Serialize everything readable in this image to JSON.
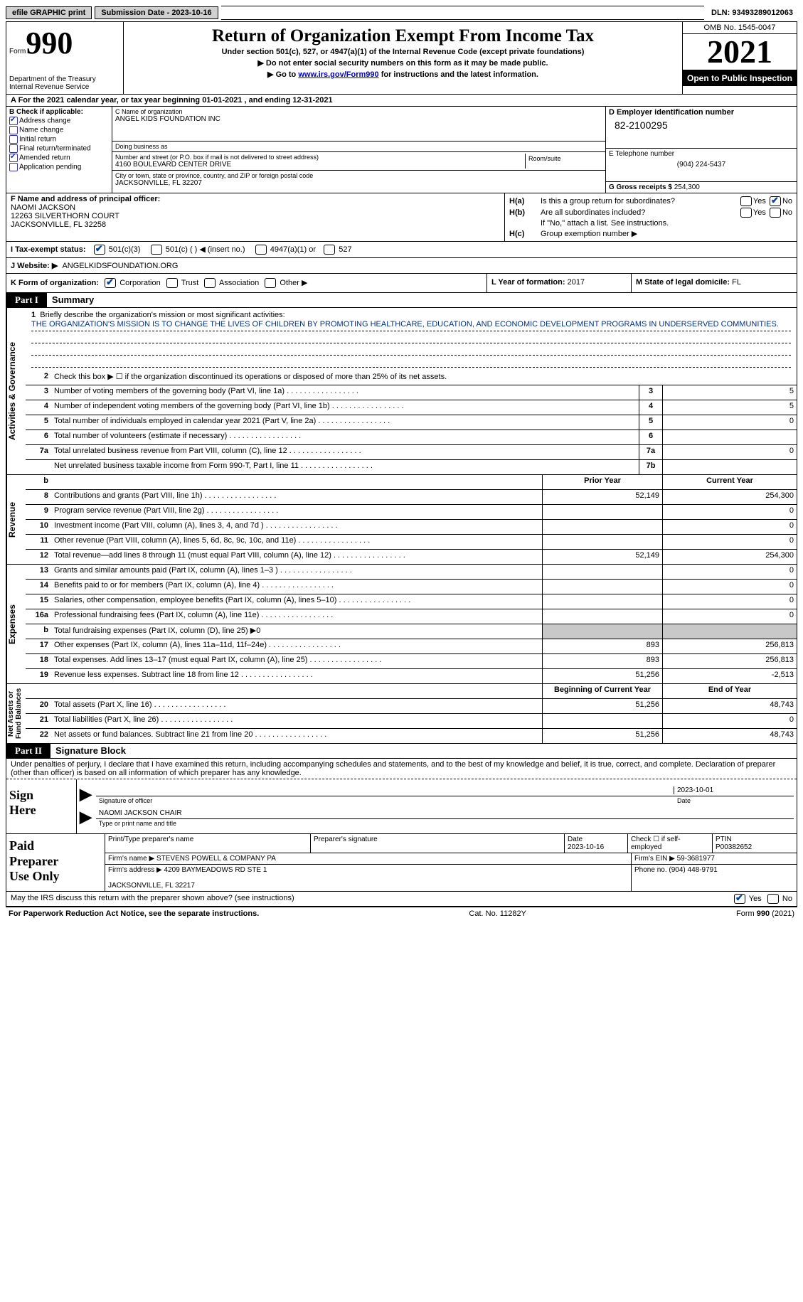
{
  "topbar": {
    "efile_label": "efile GRAPHIC print",
    "submission_label": "Submission Date - 2023-10-16",
    "dln": "DLN: 93493289012063"
  },
  "header": {
    "form_word": "Form",
    "form_num": "990",
    "dept": "Department of the Treasury\nInternal Revenue Service",
    "title": "Return of Organization Exempt From Income Tax",
    "subtitle": "Under section 501(c), 527, or 4947(a)(1) of the Internal Revenue Code (except private foundations)",
    "arrow1": "▶ Do not enter social security numbers on this form as it may be made public.",
    "arrow2_pre": "▶ Go to ",
    "arrow2_link": "www.irs.gov/Form990",
    "arrow2_post": " for instructions and the latest information.",
    "omb": "OMB No. 1545-0047",
    "year": "2021",
    "inspection": "Open to Public Inspection"
  },
  "row_a": "A  For the 2021 calendar year, or tax year beginning 01-01-2021    , and ending 12-31-2021",
  "section_b": {
    "title": "B Check if applicable:",
    "items": [
      {
        "label": "Address change",
        "checked": true
      },
      {
        "label": "Name change",
        "checked": false
      },
      {
        "label": "Initial return",
        "checked": false
      },
      {
        "label": "Final return/terminated",
        "checked": false
      },
      {
        "label": "Amended return",
        "checked": true
      },
      {
        "label": "Application pending",
        "checked": false
      }
    ]
  },
  "section_c": {
    "name_lbl": "C Name of organization",
    "name": "ANGEL KIDS FOUNDATION INC",
    "dba_lbl": "Doing business as",
    "dba": "",
    "addr_lbl": "Number and street (or P.O. box if mail is not delivered to street address)",
    "addr": "4160 BOULEVARD CENTER DRIVE",
    "room_lbl": "Room/suite",
    "room": "",
    "city_lbl": "City or town, state or province, country, and ZIP or foreign postal code",
    "city": "JACKSONVILLE, FL  32207"
  },
  "section_d": {
    "lbl": "D Employer identification number",
    "val": "82-2100295"
  },
  "section_e": {
    "lbl": "E Telephone number",
    "val": "(904) 224-5437"
  },
  "section_g": {
    "lbl": "G Gross receipts $",
    "val": "254,300"
  },
  "section_f": {
    "lbl": "F Name and address of principal officer:",
    "name": "NAOMI JACKSON",
    "addr": "12263 SILVERTHORN COURT\nJACKSONVILLE, FL  32258"
  },
  "section_h": {
    "ha": "Is this a group return for subordinates?",
    "hb": "Are all subordinates included?",
    "hb_note": "If \"No,\" attach a list. See instructions.",
    "hc": "Group exemption number ▶"
  },
  "tax_status": {
    "lbl": "I   Tax-exempt status:",
    "o1": "501(c)(3)",
    "o2": "501(c) (  ) ◀ (insert no.)",
    "o3": "4947(a)(1) or",
    "o4": "527"
  },
  "row_j": {
    "lbl": "J   Website: ▶",
    "val": "ANGELKIDSFOUNDATION.ORG"
  },
  "row_k": {
    "k1": "K Form of organization:",
    "corp": "Corporation",
    "trust": "Trust",
    "assoc": "Association",
    "other": "Other ▶",
    "k2_lbl": "L Year of formation:",
    "k2_val": "2017",
    "k3_lbl": "M State of legal domicile:",
    "k3_val": "FL"
  },
  "part1": {
    "label": "Part I",
    "title": "Summary"
  },
  "mission": {
    "lbl": "Briefly describe the organization's mission or most significant activities:",
    "text": "THE ORGANIZATION'S MISSION IS TO CHANGE THE LIVES OF CHILDREN BY PROMOTING HEALTHCARE, EDUCATION, AND ECONOMIC DEVELOPMENT PROGRAMS IN UNDERSERVED COMMUNITIES."
  },
  "lines_gov": [
    {
      "n": "2",
      "t": "Check this box ▶ ☐  if the organization discontinued its operations or disposed of more than 25% of its net assets."
    },
    {
      "n": "3",
      "t": "Number of voting members of the governing body (Part VI, line 1a)",
      "box": "3",
      "v": "5"
    },
    {
      "n": "4",
      "t": "Number of independent voting members of the governing body (Part VI, line 1b)",
      "box": "4",
      "v": "5"
    },
    {
      "n": "5",
      "t": "Total number of individuals employed in calendar year 2021 (Part V, line 2a)",
      "box": "5",
      "v": "0"
    },
    {
      "n": "6",
      "t": "Total number of volunteers (estimate if necessary)",
      "box": "6",
      "v": ""
    },
    {
      "n": "7a",
      "t": "Total unrelated business revenue from Part VIII, column (C), line 12",
      "box": "7a",
      "v": "0"
    },
    {
      "n": "",
      "t": "Net unrelated business taxable income from Form 990-T, Part I, line 11",
      "box": "7b",
      "v": ""
    }
  ],
  "col_headers": {
    "b": "b",
    "prior": "Prior Year",
    "current": "Current Year"
  },
  "lines_rev": [
    {
      "n": "8",
      "t": "Contributions and grants (Part VIII, line 1h)",
      "p": "52,149",
      "c": "254,300"
    },
    {
      "n": "9",
      "t": "Program service revenue (Part VIII, line 2g)",
      "p": "",
      "c": "0"
    },
    {
      "n": "10",
      "t": "Investment income (Part VIII, column (A), lines 3, 4, and 7d )",
      "p": "",
      "c": "0"
    },
    {
      "n": "11",
      "t": "Other revenue (Part VIII, column (A), lines 5, 6d, 8c, 9c, 10c, and 11e)",
      "p": "",
      "c": "0"
    },
    {
      "n": "12",
      "t": "Total revenue—add lines 8 through 11 (must equal Part VIII, column (A), line 12)",
      "p": "52,149",
      "c": "254,300"
    }
  ],
  "lines_exp": [
    {
      "n": "13",
      "t": "Grants and similar amounts paid (Part IX, column (A), lines 1–3 )",
      "p": "",
      "c": "0"
    },
    {
      "n": "14",
      "t": "Benefits paid to or for members (Part IX, column (A), line 4)",
      "p": "",
      "c": "0"
    },
    {
      "n": "15",
      "t": "Salaries, other compensation, employee benefits (Part IX, column (A), lines 5–10)",
      "p": "",
      "c": "0"
    },
    {
      "n": "16a",
      "t": "Professional fundraising fees (Part IX, column (A), line 11e)",
      "p": "",
      "c": "0"
    },
    {
      "n": "b",
      "t": "Total fundraising expenses (Part IX, column (D), line 25) ▶0",
      "grey": true
    },
    {
      "n": "17",
      "t": "Other expenses (Part IX, column (A), lines 11a–11d, 11f–24e)",
      "p": "893",
      "c": "256,813"
    },
    {
      "n": "18",
      "t": "Total expenses. Add lines 13–17 (must equal Part IX, column (A), line 25)",
      "p": "893",
      "c": "256,813"
    },
    {
      "n": "19",
      "t": "Revenue less expenses. Subtract line 18 from line 12",
      "p": "51,256",
      "c": "-2,513"
    }
  ],
  "net_headers": {
    "begin": "Beginning of Current Year",
    "end": "End of Year"
  },
  "lines_net": [
    {
      "n": "20",
      "t": "Total assets (Part X, line 16)",
      "p": "51,256",
      "c": "48,743"
    },
    {
      "n": "21",
      "t": "Total liabilities (Part X, line 26)",
      "p": "",
      "c": "0"
    },
    {
      "n": "22",
      "t": "Net assets or fund balances. Subtract line 21 from line 20",
      "p": "51,256",
      "c": "48,743"
    }
  ],
  "part2": {
    "label": "Part II",
    "title": "Signature Block"
  },
  "declaration": "Under penalties of perjury, I declare that I have examined this return, including accompanying schedules and statements, and to the best of my knowledge and belief, it is true, correct, and complete. Declaration of preparer (other than officer) is based on all information of which preparer has any knowledge.",
  "sign": {
    "here": "Sign\nHere",
    "sig_lbl": "Signature of officer",
    "date": "2023-10-01",
    "date_lbl": "Date",
    "name": "NAOMI JACKSON CHAIR",
    "name_lbl": "Type or print name and title"
  },
  "prep": {
    "title": "Paid\nPreparer\nUse Only",
    "h1": "Print/Type preparer's name",
    "h2": "Preparer's signature",
    "h3": "Date",
    "h3v": "2023-10-16",
    "h4": "Check ☐ if self-employed",
    "h5": "PTIN",
    "h5v": "P00382652",
    "firm_lbl": "Firm's name    ▶",
    "firm": "STEVENS POWELL & COMPANY PA",
    "ein_lbl": "Firm's EIN ▶",
    "ein": "59-3681977",
    "addr_lbl": "Firm's address ▶",
    "addr": "4209 BAYMEADOWS RD STE 1\n\nJACKSONVILLE, FL  32217",
    "phone_lbl": "Phone no.",
    "phone": "(904) 448-9791"
  },
  "discuss": "May the IRS discuss this return with the preparer shown above? (see instructions)",
  "footer": {
    "left": "For Paperwork Reduction Act Notice, see the separate instructions.",
    "mid": "Cat. No. 11282Y",
    "right": "Form 990 (2021)"
  },
  "vtabs": {
    "gov": "Activities & Governance",
    "rev": "Revenue",
    "exp": "Expenses",
    "net": "Net Assets or\nFund Balances"
  }
}
